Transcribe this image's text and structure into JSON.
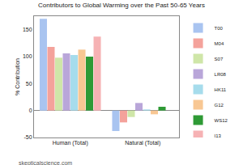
{
  "chart_data": {
    "type": "bar",
    "title": "Contributors to Global Warming over the Past 50-65 Years",
    "y_label": "% Contribution",
    "categories": [
      "Human (Total)",
      "Natural (Total)"
    ],
    "series": [
      {
        "name": "T00",
        "color": "#a9c4f0",
        "values": [
          170,
          -38
        ]
      },
      {
        "name": "M04",
        "color": "#f4a29b",
        "values": [
          118,
          -22
        ]
      },
      {
        "name": "S07",
        "color": "#cfe6a8",
        "values": [
          98,
          -12
        ]
      },
      {
        "name": "LR08",
        "color": "#b9a6d9",
        "values": [
          106,
          14
        ]
      },
      {
        "name": "HK11",
        "color": "#a6dcec",
        "values": [
          103,
          2
        ]
      },
      {
        "name": "G12",
        "color": "#f8c793",
        "values": [
          113,
          -7
        ]
      },
      {
        "name": "WS12",
        "color": "#2e9a35",
        "values": [
          100,
          7
        ]
      },
      {
        "name": "I13",
        "color": "#f6b2b4",
        "values": [
          137,
          0
        ]
      }
    ],
    "ylim": [
      -50,
      175
    ],
    "yticks": [
      -50,
      0,
      50,
      100,
      150
    ],
    "grid": false,
    "legend": "right",
    "annotations": [
      {
        "text": "skepticalscience.com"
      }
    ]
  }
}
